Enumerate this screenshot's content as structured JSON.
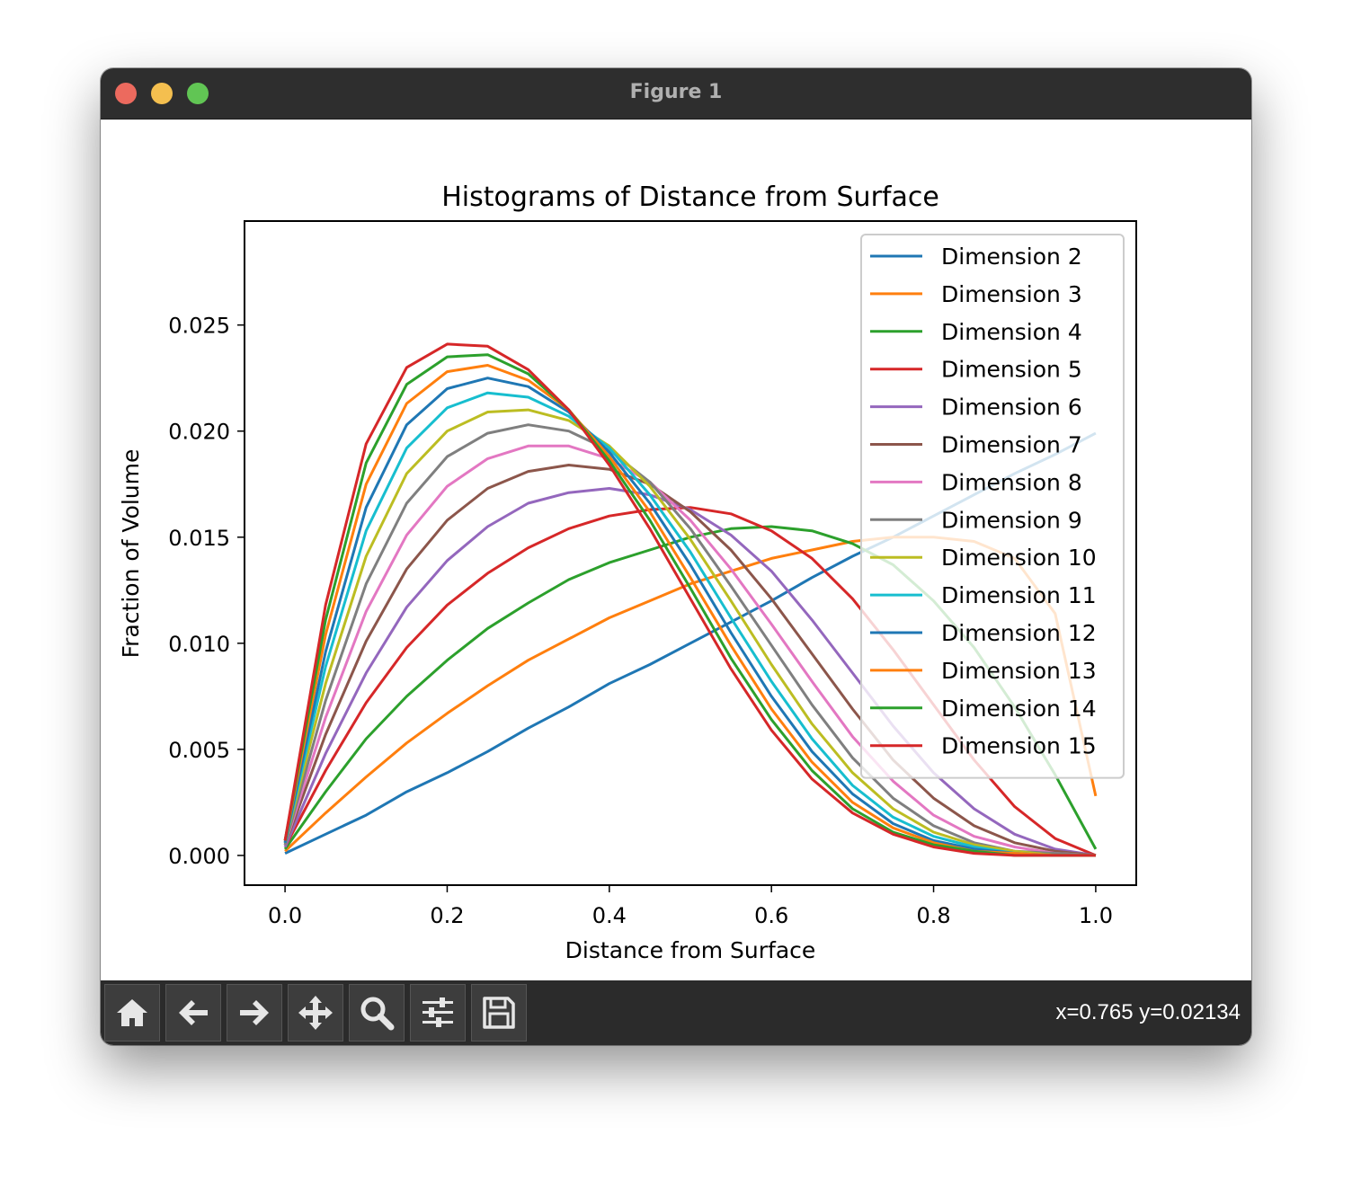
{
  "window": {
    "title": "Figure 1"
  },
  "toolbar": {
    "tools": [
      {
        "name": "home-button",
        "icon": "home-icon"
      },
      {
        "name": "back-button",
        "icon": "arrow-left-icon"
      },
      {
        "name": "forward-button",
        "icon": "arrow-right-icon"
      },
      {
        "name": "pan-button",
        "icon": "move-icon"
      },
      {
        "name": "zoom-button",
        "icon": "magnifier-icon"
      },
      {
        "name": "configure-subplots-button",
        "icon": "sliders-icon"
      },
      {
        "name": "save-button",
        "icon": "floppy-disk-icon"
      }
    ],
    "coords": "x=0.765 y=0.02134"
  },
  "chart_data": {
    "type": "line",
    "title": "Histograms of Distance from Surface",
    "xlabel": "Distance from Surface",
    "ylabel": "Fraction of Volume",
    "xlim": [
      -0.05,
      1.05
    ],
    "ylim": [
      -0.0014,
      0.0299
    ],
    "xticks": [
      "0.0",
      "0.2",
      "0.4",
      "0.6",
      "0.8",
      "1.0"
    ],
    "xtick_values": [
      0.0,
      0.2,
      0.4,
      0.6,
      0.8,
      1.0
    ],
    "yticks": [
      "0.000",
      "0.005",
      "0.010",
      "0.015",
      "0.020",
      "0.025"
    ],
    "ytick_values": [
      0.0,
      0.005,
      0.01,
      0.015,
      0.02,
      0.025
    ],
    "legend_position": "upper right",
    "x": [
      0.0,
      0.05,
      0.1,
      0.15,
      0.2,
      0.25,
      0.3,
      0.35,
      0.4,
      0.45,
      0.5,
      0.55,
      0.6,
      0.65,
      0.7,
      0.75,
      0.8,
      0.85,
      0.9,
      0.95,
      1.0
    ],
    "series": [
      {
        "name": "Dimension 2",
        "color": "#1f77b4",
        "values": [
          0.0001,
          0.001,
          0.0019,
          0.003,
          0.0039,
          0.0049,
          0.006,
          0.007,
          0.0081,
          0.009,
          0.01,
          0.011,
          0.012,
          0.0131,
          0.0141,
          0.015,
          0.016,
          0.017,
          0.018,
          0.0189,
          0.0199
        ]
      },
      {
        "name": "Dimension 3",
        "color": "#ff7f0e",
        "values": [
          0.0002,
          0.002,
          0.0037,
          0.0053,
          0.0067,
          0.008,
          0.0092,
          0.0102,
          0.0112,
          0.012,
          0.0128,
          0.0134,
          0.014,
          0.0144,
          0.0148,
          0.015,
          0.015,
          0.0148,
          0.014,
          0.0114,
          0.0028
        ]
      },
      {
        "name": "Dimension 4",
        "color": "#2ca02c",
        "values": [
          0.0003,
          0.003,
          0.0055,
          0.0075,
          0.0092,
          0.0107,
          0.0119,
          0.013,
          0.0138,
          0.0144,
          0.015,
          0.0154,
          0.0155,
          0.0153,
          0.0147,
          0.0137,
          0.012,
          0.0098,
          0.007,
          0.0038,
          0.0003
        ]
      },
      {
        "name": "Dimension 5",
        "color": "#d62728",
        "values": [
          0.0004,
          0.004,
          0.0072,
          0.0098,
          0.0118,
          0.0133,
          0.0145,
          0.0154,
          0.016,
          0.0163,
          0.0164,
          0.0161,
          0.0153,
          0.014,
          0.0121,
          0.0097,
          0.0071,
          0.0045,
          0.0023,
          0.0008,
          0.0
        ]
      },
      {
        "name": "Dimension 6",
        "color": "#9467bd",
        "values": [
          0.0004,
          0.0048,
          0.0086,
          0.0117,
          0.0139,
          0.0155,
          0.0166,
          0.0171,
          0.0173,
          0.017,
          0.0163,
          0.0151,
          0.0134,
          0.0111,
          0.0086,
          0.0061,
          0.0039,
          0.0022,
          0.001,
          0.0003,
          0.0
        ]
      },
      {
        "name": "Dimension 7",
        "color": "#8c564b",
        "values": [
          0.0005,
          0.0057,
          0.0101,
          0.0135,
          0.0158,
          0.0173,
          0.0181,
          0.0184,
          0.0182,
          0.0175,
          0.0162,
          0.0144,
          0.0121,
          0.0095,
          0.0069,
          0.0045,
          0.0027,
          0.0014,
          0.0006,
          0.0002,
          0.0
        ]
      },
      {
        "name": "Dimension 8",
        "color": "#e377c2",
        "values": [
          0.0005,
          0.0065,
          0.0115,
          0.0151,
          0.0174,
          0.0187,
          0.0193,
          0.0193,
          0.0187,
          0.0176,
          0.0158,
          0.0135,
          0.0109,
          0.0082,
          0.0056,
          0.0035,
          0.0019,
          0.0009,
          0.0004,
          0.0001,
          0.0
        ]
      },
      {
        "name": "Dimension 9",
        "color": "#7f7f7f",
        "values": [
          0.0005,
          0.0073,
          0.0128,
          0.0166,
          0.0188,
          0.0199,
          0.0203,
          0.02,
          0.0191,
          0.0176,
          0.0154,
          0.0127,
          0.0099,
          0.0071,
          0.0046,
          0.0027,
          0.0014,
          0.0006,
          0.0002,
          0.0001,
          0.0
        ]
      },
      {
        "name": "Dimension 10",
        "color": "#bcbd22",
        "values": [
          0.0006,
          0.0081,
          0.0141,
          0.018,
          0.02,
          0.0209,
          0.021,
          0.0205,
          0.0193,
          0.0174,
          0.0149,
          0.012,
          0.009,
          0.0062,
          0.0039,
          0.0022,
          0.0011,
          0.0005,
          0.0002,
          0.0,
          0.0
        ]
      },
      {
        "name": "Dimension 11",
        "color": "#17becf",
        "values": [
          0.0006,
          0.0089,
          0.0153,
          0.0192,
          0.0211,
          0.0218,
          0.0216,
          0.0207,
          0.0192,
          0.017,
          0.0143,
          0.0112,
          0.0082,
          0.0055,
          0.0033,
          0.0018,
          0.0009,
          0.0004,
          0.0001,
          0.0,
          0.0
        ]
      },
      {
        "name": "Dimension 12",
        "color": "#1f77b4",
        "values": [
          0.0006,
          0.0096,
          0.0164,
          0.0203,
          0.022,
          0.0225,
          0.0221,
          0.0209,
          0.019,
          0.0166,
          0.0137,
          0.0105,
          0.0075,
          0.0049,
          0.0029,
          0.0015,
          0.0007,
          0.0003,
          0.0001,
          0.0,
          0.0
        ]
      },
      {
        "name": "Dimension 13",
        "color": "#ff7f0e",
        "values": [
          0.0007,
          0.0104,
          0.0175,
          0.0213,
          0.0228,
          0.0231,
          0.0224,
          0.021,
          0.0188,
          0.0162,
          0.0131,
          0.0099,
          0.0069,
          0.0044,
          0.0025,
          0.0013,
          0.0006,
          0.0002,
          0.0001,
          0.0,
          0.0
        ]
      },
      {
        "name": "Dimension 14",
        "color": "#2ca02c",
        "values": [
          0.0007,
          0.0111,
          0.0185,
          0.0222,
          0.0235,
          0.0236,
          0.0227,
          0.021,
          0.0186,
          0.0158,
          0.0126,
          0.0093,
          0.0064,
          0.004,
          0.0022,
          0.0011,
          0.0005,
          0.0002,
          0.0,
          0.0,
          0.0
        ]
      },
      {
        "name": "Dimension 15",
        "color": "#d62728",
        "values": [
          0.0007,
          0.0118,
          0.0194,
          0.023,
          0.0241,
          0.024,
          0.0229,
          0.021,
          0.0184,
          0.0154,
          0.0121,
          0.0088,
          0.0059,
          0.0036,
          0.002,
          0.001,
          0.0004,
          0.0001,
          0.0,
          0.0,
          0.0
        ]
      }
    ]
  }
}
